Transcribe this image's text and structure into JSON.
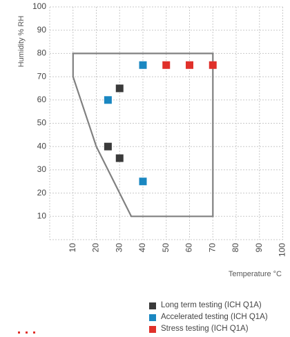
{
  "chart_data": {
    "type": "scatter",
    "title": "",
    "xlabel": "Temperature °C",
    "ylabel": "Humidity % RH",
    "xlim": [
      0,
      100
    ],
    "ylim": [
      0,
      100
    ],
    "x_ticks": [
      10,
      20,
      30,
      40,
      50,
      60,
      70,
      80,
      90,
      100
    ],
    "y_ticks": [
      10,
      20,
      30,
      40,
      50,
      60,
      70,
      80,
      90,
      100
    ],
    "grid": true,
    "legend_position": "bottom-right",
    "region_polygon": [
      {
        "x": 10,
        "y": 80
      },
      {
        "x": 70,
        "y": 80
      },
      {
        "x": 70,
        "y": 10
      },
      {
        "x": 35,
        "y": 10
      },
      {
        "x": 20,
        "y": 40
      },
      {
        "x": 10,
        "y": 70
      }
    ],
    "series": [
      {
        "name": "Long term testing (ICH Q1A)",
        "color": "#3a3a3a",
        "points": [
          {
            "x": 25,
            "y": 40
          },
          {
            "x": 30,
            "y": 35
          },
          {
            "x": 30,
            "y": 65
          }
        ]
      },
      {
        "name": "Accelerated testing (ICH Q1A)",
        "color": "#1a87c1",
        "points": [
          {
            "x": 25,
            "y": 60
          },
          {
            "x": 40,
            "y": 75
          },
          {
            "x": 40,
            "y": 25
          }
        ]
      },
      {
        "name": "Stress testing (ICH Q1A)",
        "color": "#e0302a",
        "points": [
          {
            "x": 50,
            "y": 75
          },
          {
            "x": 60,
            "y": 75
          },
          {
            "x": 70,
            "y": 75
          }
        ]
      }
    ]
  },
  "colors": {
    "grid": "#c8c8c8",
    "region": "#808080",
    "tick_text": "#444444",
    "stray_mark": "#e0302a"
  }
}
